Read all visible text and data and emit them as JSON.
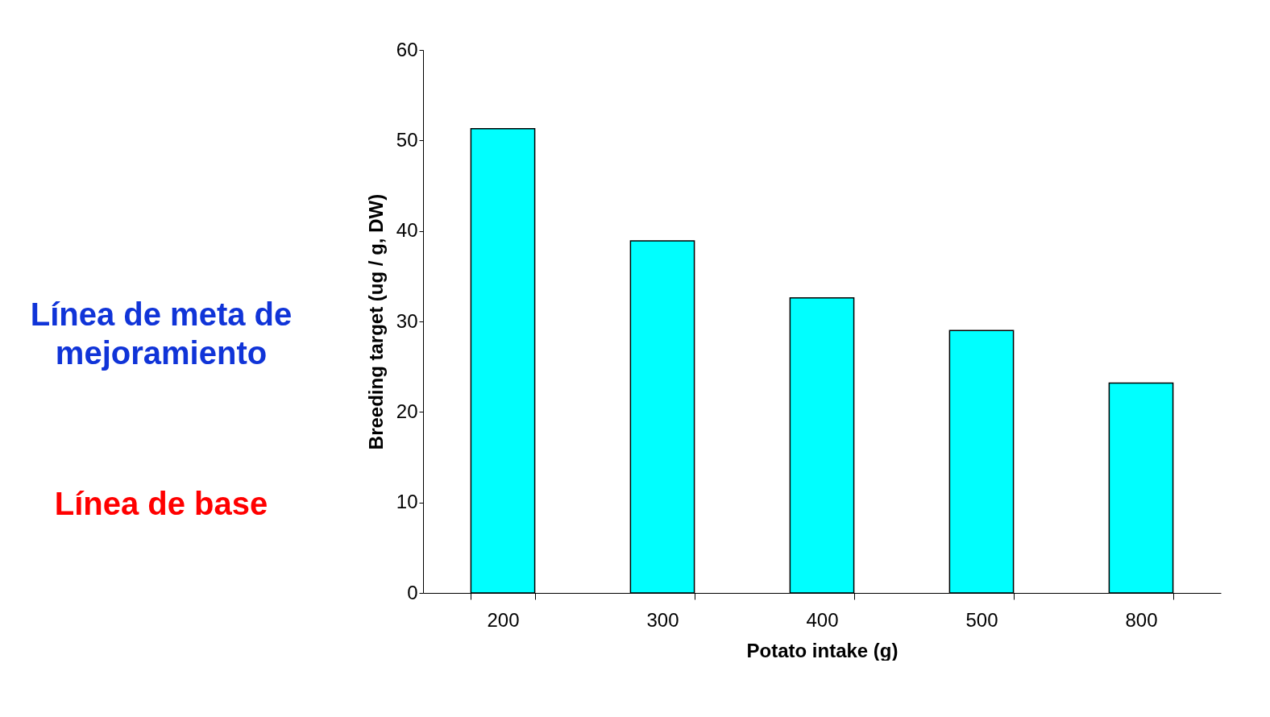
{
  "chart_data": {
    "type": "bar",
    "xlabel": "Potato intake (g)",
    "ylabel": "Breeding target (ug / g, DW)",
    "categories": [
      "200",
      "300",
      "400",
      "500",
      "800"
    ],
    "values": [
      51.3,
      38.9,
      32.6,
      29.0,
      23.2
    ],
    "color": "#00ffff",
    "ylim": [
      0,
      60
    ],
    "yticks": [
      0,
      10,
      20,
      30,
      40,
      50,
      60
    ],
    "grid": false,
    "annotations": [
      "Línea de meta de mejoramiento",
      "Línea de base"
    ]
  }
}
